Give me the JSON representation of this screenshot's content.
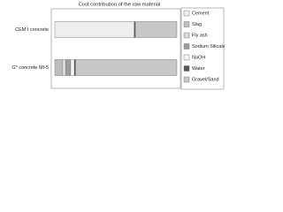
{
  "chart_data": {
    "type": "stacked-barh",
    "title": "Cost contribution of the raw material",
    "categories": [
      "CEM I concrete",
      "G* concrete MI-5"
    ],
    "series": [
      {
        "name": "Cement",
        "color": "#eeeeee",
        "values": [
          65,
          0
        ]
      },
      {
        "name": "Slag",
        "color": "#bdbdbd",
        "values": [
          0,
          6
        ]
      },
      {
        "name": "Fly ash",
        "color": "#d9d9d9",
        "values": [
          0,
          3
        ]
      },
      {
        "name": "Sodium Silicate",
        "color": "#9e9e9e",
        "values": [
          0,
          4
        ]
      },
      {
        "name": "NaOH",
        "color": "#f5f5f5",
        "values": [
          0,
          3
        ]
      },
      {
        "name": "Water",
        "color": "#555555",
        "values": [
          1,
          1
        ]
      },
      {
        "name": "Gravel/Sand",
        "color": "#c8c8c8",
        "values": [
          34,
          83
        ]
      }
    ]
  }
}
